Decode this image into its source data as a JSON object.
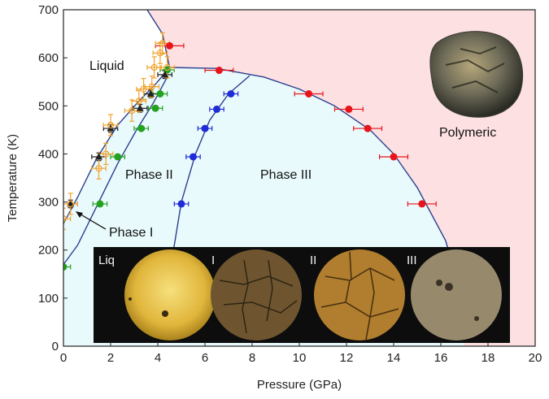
{
  "chart_data": {
    "type": "scatter",
    "title": "",
    "xlabel": "Pressure (GPa)",
    "ylabel": "Temperature (K)",
    "xlim": [
      0,
      20
    ],
    "ylim": [
      0,
      700
    ],
    "xticks": [
      0,
      2,
      4,
      6,
      8,
      10,
      12,
      14,
      16,
      18,
      20
    ],
    "yticks": [
      0,
      100,
      200,
      300,
      400,
      500,
      600,
      700
    ],
    "grid": false,
    "region_labels": [
      "Liquid",
      "Phase II",
      "Phase III",
      "Polymeric",
      "Phase I"
    ],
    "region_colors": {
      "liquid": "#ffffff",
      "phase": "#e9fafc",
      "polymeric": "#fde0e2"
    },
    "boundaries": [
      {
        "from": "melting",
        "points": [
          [
            0,
            255
          ],
          [
            0.6,
            310
          ],
          [
            1.4,
            390
          ],
          [
            2.3,
            460
          ],
          [
            3.2,
            510
          ],
          [
            3.9,
            545
          ],
          [
            4.5,
            580
          ],
          [
            4.2,
            650
          ],
          [
            3.55,
            700
          ]
        ]
      },
      {
        "from": "I-II",
        "points": [
          [
            0,
            170
          ],
          [
            0.6,
            210
          ],
          [
            1.5,
            300
          ],
          [
            2.3,
            380
          ],
          [
            3.1,
            450
          ],
          [
            3.8,
            505
          ],
          [
            4.4,
            560
          ]
        ]
      },
      {
        "from": "II-III",
        "points": [
          [
            4.6,
            180
          ],
          [
            5.0,
            300
          ],
          [
            5.6,
            400
          ],
          [
            6.2,
            470
          ],
          [
            7.0,
            525
          ],
          [
            7.9,
            563
          ]
        ]
      },
      {
        "from": "III-polymeric",
        "points": [
          [
            4.5,
            580
          ],
          [
            6.5,
            578
          ],
          [
            8.5,
            560
          ],
          [
            10.0,
            535
          ],
          [
            11.5,
            500
          ],
          [
            13.0,
            450
          ],
          [
            14.0,
            400
          ],
          [
            15.0,
            330
          ],
          [
            16.2,
            220
          ],
          [
            16.8,
            120
          ],
          [
            17.0,
            40
          ]
        ]
      }
    ],
    "series": [
      {
        "color": "#e8141b",
        "marker": "circle",
        "x": [
          4.5,
          6.6,
          10.4,
          12.1,
          12.9,
          14.0,
          15.2
        ],
        "y": [
          625,
          574,
          525,
          493,
          453,
          394,
          296
        ],
        "xerr": 0.6,
        "yerr": 0
      },
      {
        "color": "#1f2bd6",
        "marker": "circle",
        "x": [
          5.0,
          5.5,
          6.0,
          6.5,
          7.1
        ],
        "y": [
          296,
          394,
          453,
          493,
          525
        ],
        "xerr": 0.3,
        "yerr": 0
      },
      {
        "color": "#23a11f",
        "marker": "circle",
        "x": [
          0.0,
          1.55,
          2.3,
          3.3,
          3.9,
          4.1,
          4.4
        ],
        "y": [
          165,
          296,
          394,
          453,
          495,
          525,
          575
        ],
        "xerr": 0.3,
        "yerr": 0
      },
      {
        "color": "#222222",
        "marker": "triangle",
        "x": [
          0.3,
          1.5,
          2.0,
          3.25,
          3.7,
          4.3
        ],
        "y": [
          296,
          394,
          453,
          495,
          525,
          565
        ],
        "xerr": 0.3,
        "yerr": 8
      },
      {
        "color": "#f2a12c",
        "marker": "open-circle",
        "x": [
          0.0,
          0.3,
          1.5,
          1.8,
          2.0,
          2.9,
          3.2,
          3.4,
          3.75,
          3.85,
          4.1,
          4.2,
          4.4
        ],
        "y": [
          265,
          296,
          370,
          400,
          460,
          490,
          510,
          535,
          540,
          580,
          610,
          630,
          580
        ],
        "xerr": 0.3,
        "yerr": 22
      }
    ],
    "annotations": [
      {
        "text": "Phase I",
        "arrow_to": [
          0.3,
          296
        ]
      }
    ],
    "inset": {
      "labels": [
        "Liq",
        "I",
        "II",
        "III"
      ],
      "panel_colors": [
        "#e0b53b",
        "#6e5530",
        "#b07e2e",
        "#978a6c"
      ],
      "background": "#0d0d0d"
    },
    "photo_label": "Polymeric",
    "photo_colors": [
      "#6e6b58",
      "#b6a77a",
      "#2a2b24"
    ]
  }
}
